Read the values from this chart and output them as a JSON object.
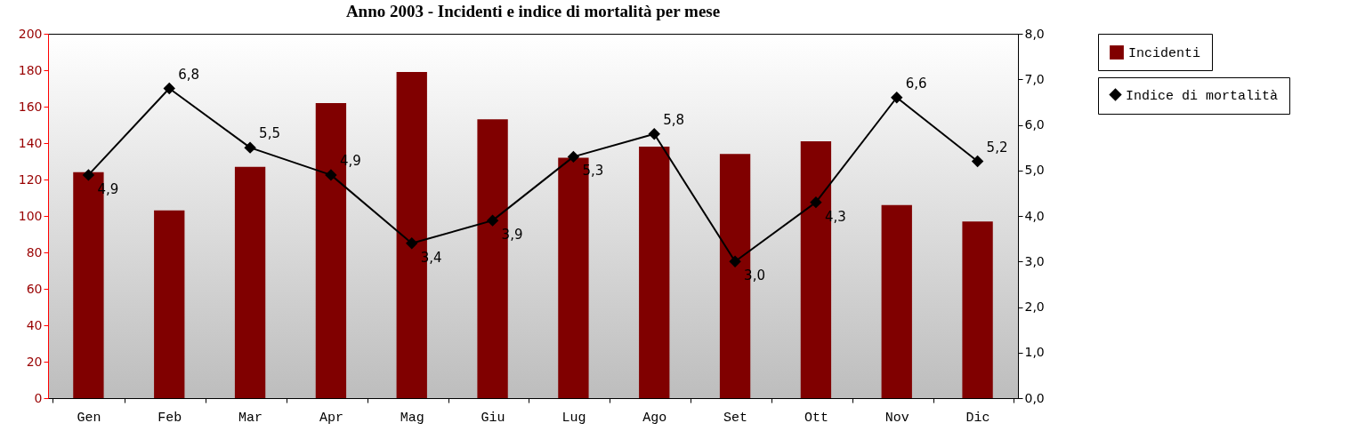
{
  "chart_data": {
    "type": "bar",
    "title": "Anno 2003 - Incidenti e indice di mortalità per mese",
    "categories": [
      "Gen",
      "Feb",
      "Mar",
      "Apr",
      "Mag",
      "Giu",
      "Lug",
      "Ago",
      "Set",
      "Ott",
      "Nov",
      "Dic"
    ],
    "series": [
      {
        "name": "Incidenti",
        "color": "#800000",
        "values": [
          124,
          103,
          127,
          162,
          179,
          153,
          132,
          138,
          134,
          141,
          106,
          97
        ]
      },
      {
        "name": "Indice di mortalità",
        "type": "line",
        "axis": "y2",
        "color": "#000000",
        "values": [
          4.9,
          6.8,
          5.5,
          4.9,
          3.4,
          3.9,
          5.3,
          5.8,
          3.0,
          4.3,
          6.6,
          5.2
        ],
        "value_labels": [
          "4,9",
          "6,8",
          "5,5",
          "4,9",
          "3,4",
          "3,9",
          "5,3",
          "5,8",
          "3,0",
          "4,3",
          "6,6",
          "5,2"
        ]
      }
    ],
    "ylim": [
      0,
      200
    ],
    "yticks": [
      0,
      20,
      40,
      60,
      80,
      100,
      120,
      140,
      160,
      180,
      200
    ],
    "y2lim": [
      0,
      8
    ],
    "y2ticks": [
      {
        "value": 0,
        "label": "0,0"
      },
      {
        "value": 1,
        "label": "1,0"
      },
      {
        "value": 2,
        "label": "2,0"
      },
      {
        "value": 3,
        "label": "3,0"
      },
      {
        "value": 4,
        "label": "4,0"
      },
      {
        "value": 5,
        "label": "5,0"
      },
      {
        "value": 6,
        "label": "6,0"
      },
      {
        "value": 7,
        "label": "7,0"
      },
      {
        "value": 8,
        "label": "8,0"
      }
    ],
    "legend": "right",
    "marker": "diamond"
  }
}
